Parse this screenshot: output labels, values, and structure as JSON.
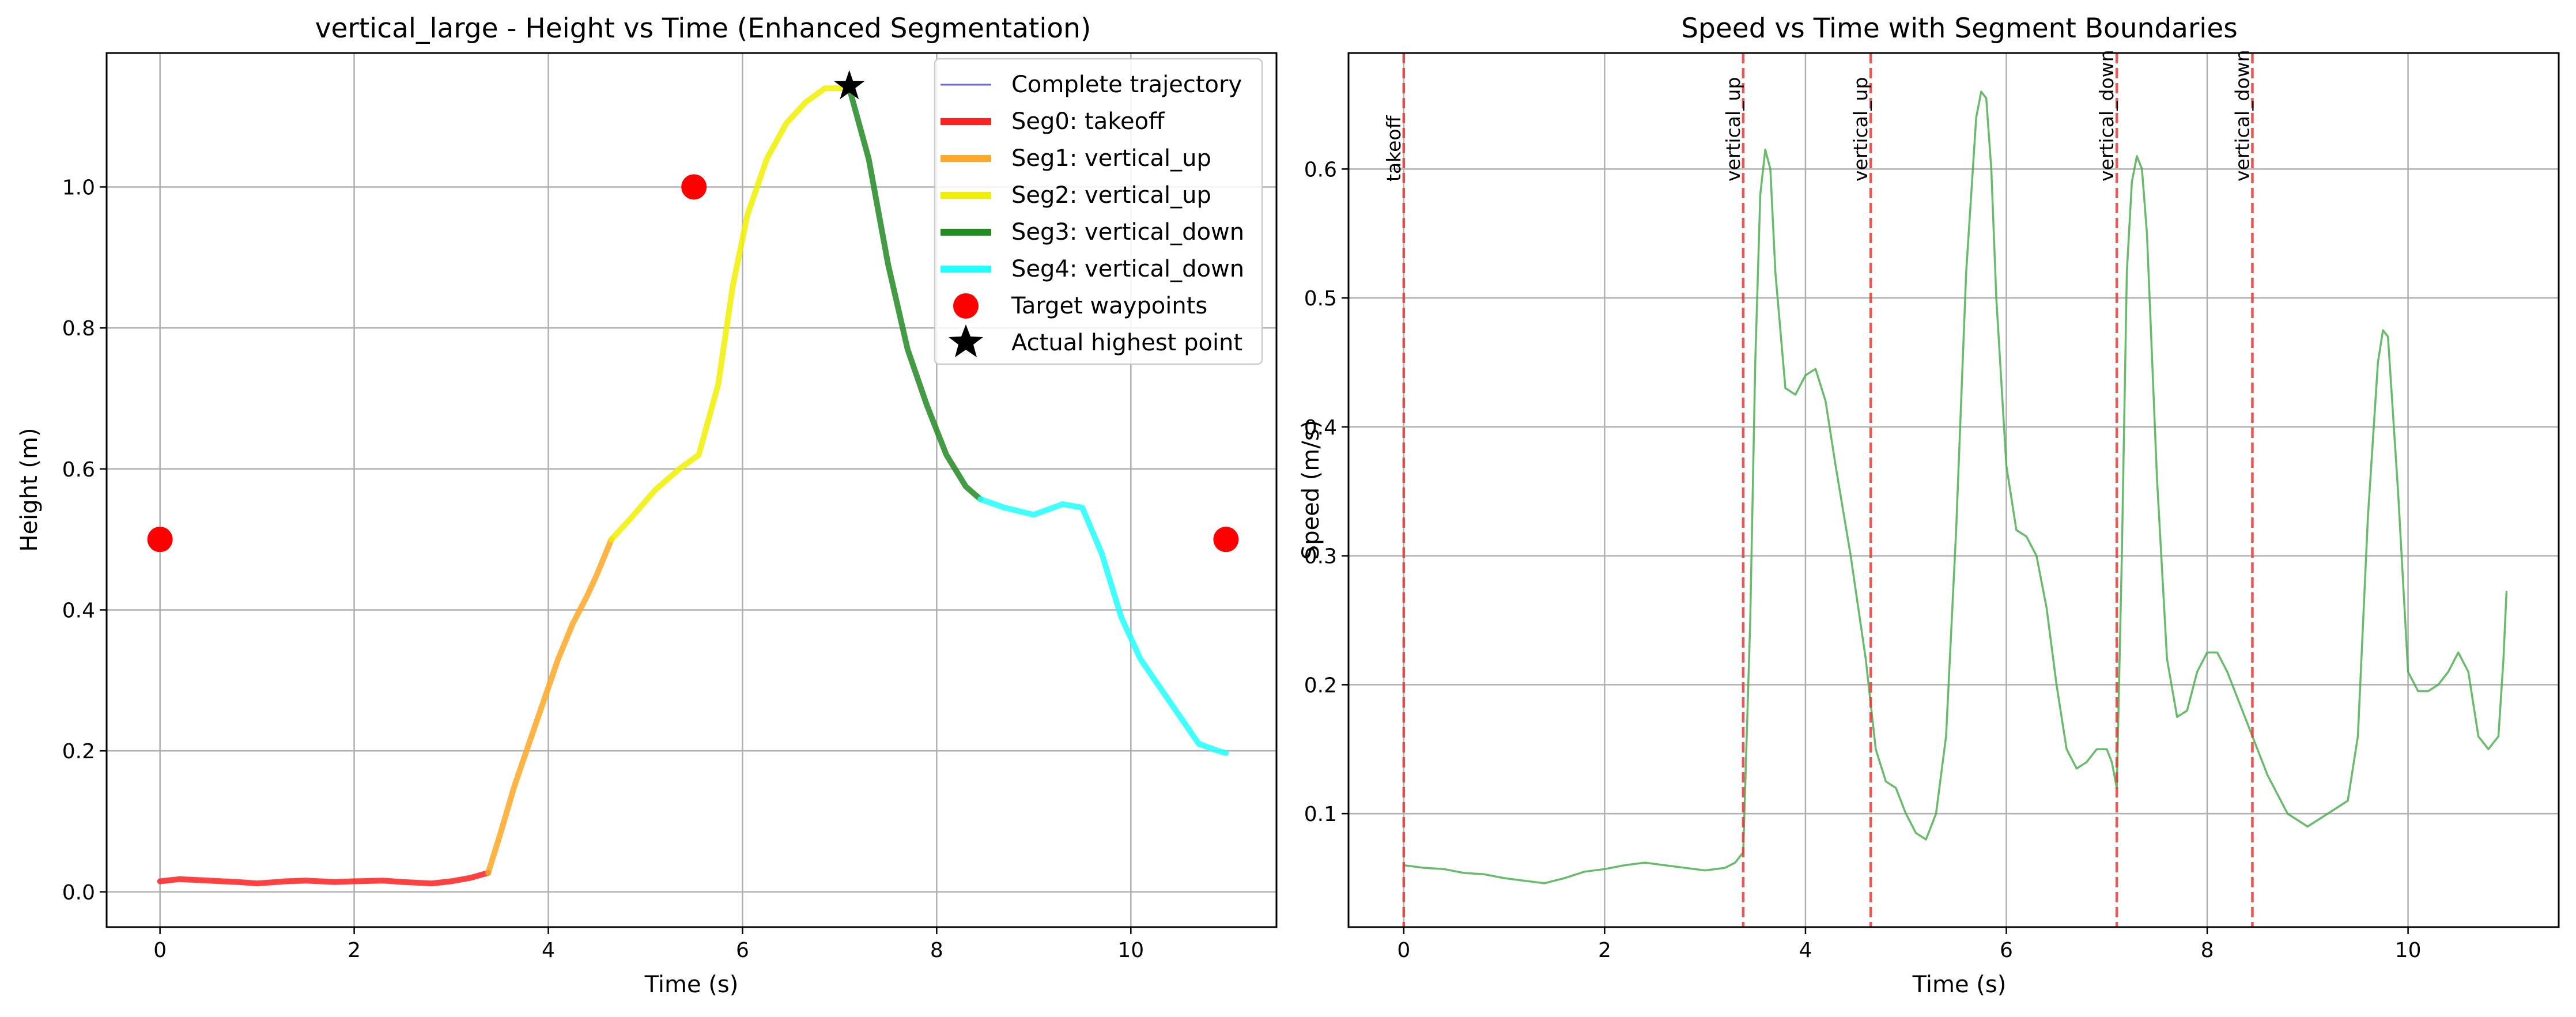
{
  "chart_data": [
    {
      "type": "line",
      "title": "vertical_large - Height vs Time (Enhanced Segmentation)",
      "xlabel": "Time (s)",
      "ylabel": "Height (m)",
      "xlim": [
        -0.55,
        11.5
      ],
      "ylim": [
        -0.05,
        1.19
      ],
      "xticks": [
        "0",
        "2",
        "4",
        "6",
        "8",
        "10"
      ],
      "xtick_values": [
        0,
        2,
        4,
        6,
        8,
        10
      ],
      "yticks": [
        "0.0",
        "0.2",
        "0.4",
        "0.6",
        "0.8",
        "1.0"
      ],
      "ytick_values": [
        0.0,
        0.2,
        0.4,
        0.6,
        0.8,
        1.0
      ],
      "grid": true,
      "legend_position": "top-right",
      "series": [
        {
          "name": "Complete trajectory",
          "color": "#6a6ad6",
          "style": "thin-line",
          "legend_only": true
        },
        {
          "name": "Seg0: takeoff",
          "color": "#ff2020",
          "x": [
            0,
            0.2,
            0.5,
            0.8,
            1.0,
            1.3,
            1.5,
            1.8,
            2.0,
            2.3,
            2.5,
            2.8,
            3.0,
            3.2,
            3.38
          ],
          "y": [
            0.015,
            0.018,
            0.016,
            0.014,
            0.012,
            0.015,
            0.016,
            0.014,
            0.015,
            0.016,
            0.014,
            0.012,
            0.015,
            0.02,
            0.027
          ]
        },
        {
          "name": "Seg1: vertical_up",
          "color": "#ffa726",
          "x": [
            3.38,
            3.5,
            3.65,
            3.8,
            3.95,
            4.1,
            4.25,
            4.4,
            4.5,
            4.65
          ],
          "y": [
            0.027,
            0.08,
            0.15,
            0.21,
            0.27,
            0.33,
            0.38,
            0.42,
            0.45,
            0.5
          ]
        },
        {
          "name": "Seg2: vertical_up",
          "color": "#f0f000",
          "x": [
            4.65,
            4.85,
            5.1,
            5.35,
            5.55,
            5.75,
            5.9,
            6.05,
            6.25,
            6.45,
            6.65,
            6.85,
            7.0,
            7.1
          ],
          "y": [
            0.5,
            0.53,
            0.57,
            0.6,
            0.62,
            0.72,
            0.86,
            0.96,
            1.04,
            1.09,
            1.12,
            1.14,
            1.14,
            1.14
          ]
        },
        {
          "name": "Seg3: vertical_down",
          "color": "#228b22",
          "x": [
            7.1,
            7.3,
            7.5,
            7.7,
            7.9,
            8.1,
            8.3,
            8.45
          ],
          "y": [
            1.14,
            1.04,
            0.89,
            0.77,
            0.69,
            0.62,
            0.575,
            0.557
          ]
        },
        {
          "name": "Seg4: vertical_down",
          "color": "#20ffff",
          "x": [
            8.45,
            8.7,
            9.0,
            9.3,
            9.5,
            9.7,
            9.9,
            10.1,
            10.3,
            10.5,
            10.7,
            10.9,
            10.98
          ],
          "y": [
            0.557,
            0.545,
            0.535,
            0.55,
            0.545,
            0.48,
            0.39,
            0.33,
            0.29,
            0.25,
            0.21,
            0.2,
            0.197
          ]
        },
        {
          "name": "Target waypoints",
          "color": "#ff0000",
          "style": "markers",
          "x": [
            0,
            5.5,
            10.98
          ],
          "y": [
            0.5,
            1.0,
            0.5
          ]
        },
        {
          "name": "Actual highest point",
          "color": "#000000",
          "style": "star",
          "x": [
            7.1
          ],
          "y": [
            1.143
          ]
        }
      ]
    },
    {
      "type": "line",
      "title": "Speed vs Time with Segment Boundaries",
      "xlabel": "Time (s)",
      "ylabel": "Speed (m/s)",
      "xlim": [
        -0.55,
        11.5
      ],
      "ylim": [
        0.012,
        0.69
      ],
      "xticks": [
        "0",
        "2",
        "4",
        "6",
        "8",
        "10"
      ],
      "xtick_values": [
        0,
        2,
        4,
        6,
        8,
        10
      ],
      "yticks": [
        "0.1",
        "0.2",
        "0.3",
        "0.4",
        "0.5",
        "0.6"
      ],
      "ytick_values": [
        0.1,
        0.2,
        0.3,
        0.4,
        0.5,
        0.6
      ],
      "grid": true,
      "series": [
        {
          "name": "",
          "color": "#4caf50",
          "x": [
            0,
            0.2,
            0.4,
            0.6,
            0.8,
            1.0,
            1.2,
            1.4,
            1.6,
            1.8,
            2.0,
            2.2,
            2.4,
            2.6,
            2.8,
            3.0,
            3.2,
            3.3,
            3.38,
            3.45,
            3.5,
            3.55,
            3.6,
            3.65,
            3.7,
            3.8,
            3.9,
            4.0,
            4.1,
            4.2,
            4.3,
            4.45,
            4.6,
            4.7,
            4.8,
            4.9,
            5.0,
            5.1,
            5.2,
            5.3,
            5.4,
            5.5,
            5.6,
            5.7,
            5.75,
            5.8,
            5.85,
            5.9,
            6.0,
            6.1,
            6.2,
            6.3,
            6.4,
            6.5,
            6.6,
            6.7,
            6.8,
            6.9,
            7.0,
            7.05,
            7.1,
            7.15,
            7.2,
            7.25,
            7.3,
            7.35,
            7.4,
            7.5,
            7.6,
            7.7,
            7.8,
            7.9,
            8.0,
            8.1,
            8.2,
            8.3,
            8.4,
            8.5,
            8.6,
            8.8,
            9.0,
            9.2,
            9.4,
            9.5,
            9.6,
            9.7,
            9.75,
            9.8,
            9.9,
            10.0,
            10.1,
            10.2,
            10.3,
            10.4,
            10.5,
            10.6,
            10.7,
            10.8,
            10.9,
            10.95,
            10.98
          ],
          "y": [
            0.06,
            0.058,
            0.057,
            0.054,
            0.053,
            0.05,
            0.048,
            0.046,
            0.05,
            0.055,
            0.057,
            0.06,
            0.062,
            0.06,
            0.058,
            0.056,
            0.058,
            0.062,
            0.07,
            0.25,
            0.45,
            0.58,
            0.615,
            0.6,
            0.52,
            0.43,
            0.425,
            0.44,
            0.445,
            0.42,
            0.37,
            0.3,
            0.22,
            0.15,
            0.125,
            0.12,
            0.1,
            0.085,
            0.08,
            0.1,
            0.16,
            0.32,
            0.52,
            0.64,
            0.66,
            0.655,
            0.6,
            0.5,
            0.37,
            0.32,
            0.315,
            0.3,
            0.26,
            0.2,
            0.15,
            0.135,
            0.14,
            0.15,
            0.15,
            0.14,
            0.12,
            0.3,
            0.52,
            0.59,
            0.61,
            0.6,
            0.55,
            0.36,
            0.22,
            0.175,
            0.18,
            0.21,
            0.225,
            0.225,
            0.21,
            0.19,
            0.17,
            0.15,
            0.13,
            0.1,
            0.09,
            0.1,
            0.11,
            0.16,
            0.33,
            0.45,
            0.475,
            0.47,
            0.35,
            0.21,
            0.195,
            0.195,
            0.2,
            0.21,
            0.225,
            0.21,
            0.16,
            0.15,
            0.16,
            0.22,
            0.272
          ]
        }
      ],
      "boundaries": [
        {
          "x": 0.0,
          "label": "takeoff"
        },
        {
          "x": 3.38,
          "label": "vertical_up"
        },
        {
          "x": 4.65,
          "label": "vertical_up"
        },
        {
          "x": 7.1,
          "label": "vertical_down"
        },
        {
          "x": 8.45,
          "label": "vertical_down"
        }
      ],
      "boundary_color": "#e53935"
    }
  ]
}
